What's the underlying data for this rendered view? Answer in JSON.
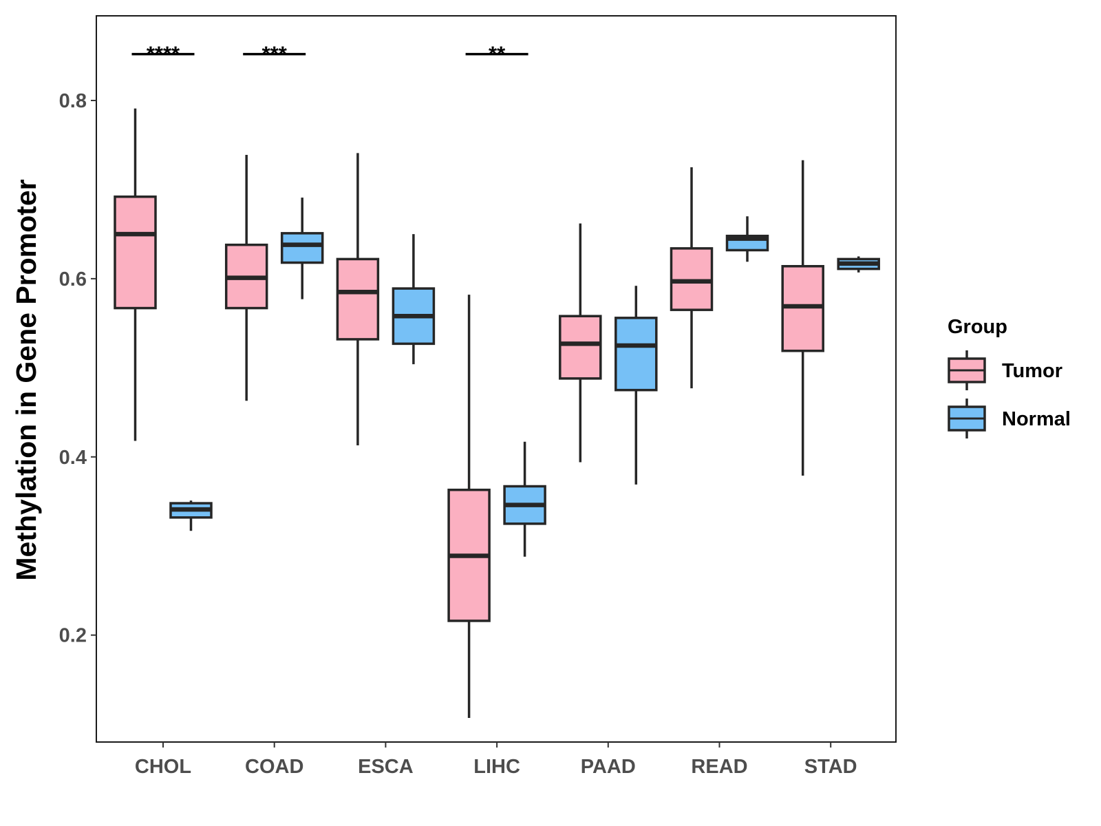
{
  "chart_data": {
    "type": "boxplot",
    "title": "",
    "xlabel": "",
    "ylabel": "Methylation in Gene Promoter",
    "ylim": [
      0.08,
      0.895
    ],
    "yticks": [
      0.2,
      0.4,
      0.6,
      0.8
    ],
    "ytick_labels": [
      "0.2",
      "0.4",
      "0.6",
      "0.8"
    ],
    "categories": [
      "CHOL",
      "COAD",
      "ESCA",
      "LIHC",
      "PAAD",
      "READ",
      "STAD"
    ],
    "legend": {
      "title": "Group",
      "position": "right"
    },
    "series": [
      {
        "name": "Tumor",
        "color": "#fbb0c1",
        "boxes": [
          {
            "category": "CHOL",
            "min": 0.418,
            "q1": 0.567,
            "median": 0.65,
            "q3": 0.692,
            "max": 0.791
          },
          {
            "category": "COAD",
            "min": 0.463,
            "q1": 0.567,
            "median": 0.601,
            "q3": 0.638,
            "max": 0.739
          },
          {
            "category": "ESCA",
            "min": 0.413,
            "q1": 0.532,
            "median": 0.585,
            "q3": 0.622,
            "max": 0.741
          },
          {
            "category": "LIHC",
            "min": 0.107,
            "q1": 0.216,
            "median": 0.289,
            "q3": 0.363,
            "max": 0.582
          },
          {
            "category": "PAAD",
            "min": 0.394,
            "q1": 0.488,
            "median": 0.527,
            "q3": 0.558,
            "max": 0.662
          },
          {
            "category": "READ",
            "min": 0.477,
            "q1": 0.565,
            "median": 0.597,
            "q3": 0.634,
            "max": 0.725
          },
          {
            "category": "STAD",
            "min": 0.379,
            "q1": 0.519,
            "median": 0.569,
            "q3": 0.614,
            "max": 0.733
          }
        ]
      },
      {
        "name": "Normal",
        "color": "#76c0f6",
        "boxes": [
          {
            "category": "CHOL",
            "min": 0.317,
            "q1": 0.332,
            "median": 0.341,
            "q3": 0.348,
            "max": 0.351
          },
          {
            "category": "COAD",
            "min": 0.577,
            "q1": 0.618,
            "median": 0.638,
            "q3": 0.651,
            "max": 0.691
          },
          {
            "category": "ESCA",
            "min": 0.504,
            "q1": 0.527,
            "median": 0.558,
            "q3": 0.589,
            "max": 0.65
          },
          {
            "category": "LIHC",
            "min": 0.288,
            "q1": 0.325,
            "median": 0.346,
            "q3": 0.367,
            "max": 0.417
          },
          {
            "category": "PAAD",
            "min": 0.369,
            "q1": 0.475,
            "median": 0.525,
            "q3": 0.556,
            "max": 0.592
          },
          {
            "category": "READ",
            "min": 0.619,
            "q1": 0.632,
            "median": 0.645,
            "q3": 0.648,
            "max": 0.67
          },
          {
            "category": "STAD",
            "min": 0.607,
            "q1": 0.611,
            "median": 0.617,
            "q3": 0.622,
            "max": 0.625
          }
        ]
      }
    ],
    "significance": [
      {
        "category": "CHOL",
        "label": "****",
        "y": 0.852
      },
      {
        "category": "COAD",
        "label": "***",
        "y": 0.852
      },
      {
        "category": "LIHC",
        "label": "**",
        "y": 0.852
      }
    ]
  }
}
